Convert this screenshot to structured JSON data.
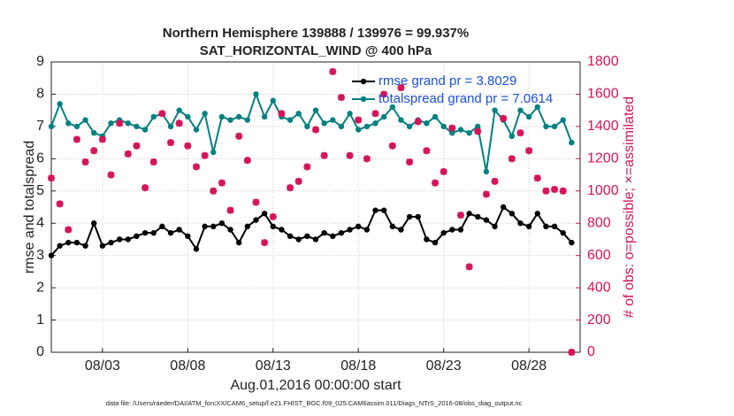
{
  "chart_data": {
    "type": "line",
    "title": "Northern Hemisphere 139888 / 139976 = 99.937%",
    "subtitle": "SAT_HORIZONTAL_WIND @ 400 hPa",
    "x_label": "Aug.01,2016 00:00:00 start",
    "y_label": "rmse and totalspread",
    "y2_label": "# of obs: o=possible; ×=assimilated",
    "footnote": "data file: /Users/raeder/DAI/ATM_forcXX/CAM6_setup/f.e21.FHIST_BGC.f09_025.CAM6assim.011/Diags_NTrS_2016-08/obs_diag_output.nc",
    "x": [
      0,
      0.5,
      1,
      1.5,
      2,
      2.5,
      3,
      3.5,
      4,
      4.5,
      5,
      5.5,
      6,
      6.5,
      7,
      7.5,
      8,
      8.5,
      9,
      9.5,
      10,
      10.5,
      11,
      11.5,
      12,
      12.5,
      13,
      13.5,
      14,
      14.5,
      15,
      15.5,
      16,
      16.5,
      17,
      17.5,
      18,
      18.5,
      19,
      19.5,
      20,
      20.5,
      21,
      21.5,
      22,
      22.5,
      23,
      23.5,
      24,
      24.5,
      25,
      25.5,
      26,
      26.5,
      27,
      27.5,
      28,
      28.5,
      29,
      29.5,
      30,
      30.5
    ],
    "xlim": [
      0,
      31
    ],
    "xticks": [
      {
        "value": 3,
        "label": "08/03"
      },
      {
        "value": 8,
        "label": "08/08"
      },
      {
        "value": 13,
        "label": "08/13"
      },
      {
        "value": 18,
        "label": "08/18"
      },
      {
        "value": 23,
        "label": "08/23"
      },
      {
        "value": 28,
        "label": "08/28"
      }
    ],
    "ylim": [
      0,
      9
    ],
    "yticks": [
      0,
      1,
      2,
      3,
      4,
      5,
      6,
      7,
      8,
      9
    ],
    "y2lim": [
      0,
      1800
    ],
    "y2ticks": [
      0,
      200,
      400,
      600,
      800,
      1000,
      1200,
      1400,
      1600,
      1800
    ],
    "grid": true,
    "legend": "upper right",
    "series": [
      {
        "name": "rmse grand pr = 3.8029",
        "color": "#000000",
        "line": true,
        "values": [
          3.0,
          3.3,
          3.4,
          3.4,
          3.3,
          4.0,
          3.3,
          3.4,
          3.5,
          3.5,
          3.6,
          3.7,
          3.7,
          3.9,
          3.7,
          3.8,
          3.6,
          3.2,
          3.9,
          3.9,
          4.0,
          3.8,
          3.4,
          3.9,
          4.1,
          4.3,
          3.9,
          3.8,
          3.6,
          3.5,
          3.6,
          3.5,
          3.7,
          3.6,
          3.7,
          3.8,
          3.9,
          3.8,
          4.4,
          4.4,
          3.9,
          3.8,
          4.2,
          4.2,
          3.5,
          3.4,
          3.7,
          3.8,
          3.8,
          4.3,
          4.2,
          4.1,
          3.9,
          4.5,
          4.3,
          4.0,
          3.9,
          4.3,
          3.9,
          3.9,
          3.7,
          3.4
        ]
      },
      {
        "name": "totalspread grand pr = 7.0614",
        "color": "#008080",
        "line": true,
        "values": [
          7.0,
          7.7,
          7.1,
          7.0,
          7.2,
          6.8,
          6.7,
          7.1,
          7.2,
          7.1,
          7.0,
          6.9,
          7.3,
          7.4,
          7.0,
          7.5,
          7.3,
          6.9,
          7.4,
          6.2,
          7.3,
          7.2,
          7.3,
          7.2,
          8.0,
          7.3,
          7.8,
          7.3,
          7.2,
          7.4,
          7.0,
          7.5,
          7.1,
          7.2,
          7.0,
          7.4,
          6.9,
          7.0,
          7.1,
          7.3,
          7.6,
          7.2,
          7.0,
          7.2,
          7.1,
          7.3,
          7.0,
          6.8,
          6.9,
          6.8,
          7.0,
          5.6,
          7.5,
          7.2,
          6.7,
          7.5,
          7.3,
          7.6,
          7.0,
          7.0,
          7.2,
          6.5
        ]
      },
      {
        "color": "#d4145a",
        "line": false,
        "axis": "y2",
        "values": [
          1080,
          920,
          760,
          1320,
          1180,
          1250,
          1320,
          1100,
          1420,
          1230,
          1280,
          1020,
          1180,
          1480,
          1300,
          1420,
          1280,
          1150,
          1220,
          1000,
          1050,
          880,
          1340,
          1190,
          930,
          680,
          840,
          1480,
          1020,
          1060,
          1150,
          1380,
          1220,
          1740,
          1580,
          1220,
          1440,
          1200,
          1480,
          1600,
          1280,
          1640,
          1180,
          1430,
          1250,
          1050,
          1120,
          1390,
          850,
          530,
          1370,
          980,
          1060,
          1450,
          1200,
          1360,
          1250,
          1080,
          1000,
          1010,
          1000,
          0
        ]
      }
    ]
  }
}
